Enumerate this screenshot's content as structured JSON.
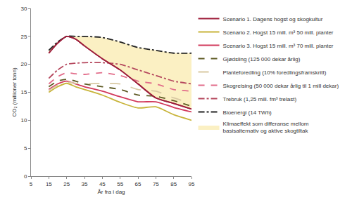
{
  "chart_data": {
    "type": "line",
    "x_label": "År fra i dag",
    "y_label": "CO₂ (millioner tonn)",
    "x": [
      15,
      20,
      25,
      30,
      35,
      45,
      55,
      65,
      75,
      85,
      95
    ],
    "xlim": [
      5,
      95
    ],
    "xticks": [
      5,
      15,
      25,
      35,
      45,
      55,
      65,
      75,
      85,
      95
    ],
    "ylim": [
      0,
      30
    ],
    "yticks": [
      0,
      5,
      10,
      15,
      20,
      25,
      30
    ],
    "grid": false,
    "legend": "right",
    "series": [
      {
        "name": "Scenario 1. Dagens hogst og skogkultur",
        "color": "#9e1f3c",
        "line_style": "solid",
        "values": [
          22,
          23.8,
          25,
          24.5,
          23.3,
          21,
          19,
          16.5,
          14,
          13,
          12
        ]
      },
      {
        "name": "Scenario 2. Hogst 15 mill. m³ 50 mill. planter",
        "color": "#c8b43a",
        "line_style": "solid",
        "values": [
          15,
          16,
          16.6,
          16,
          15.5,
          14.5,
          13.2,
          12.2,
          12.4,
          11,
          10
        ]
      },
      {
        "name": "Scenario 3. Hogst 15 mill. m³ 70 mill. planter",
        "color": "#d23a5c",
        "line_style": "solid",
        "values": [
          15.5,
          16.5,
          17,
          16.5,
          16,
          15.2,
          14.2,
          13.3,
          13.3,
          12.3,
          11.5
        ]
      },
      {
        "name": "Gjødsling (125 000 dekar årlig)",
        "color": "#5e5a24",
        "line_style": "dash",
        "values": [
          16,
          17,
          17.3,
          17,
          16.5,
          16,
          15.5,
          14.5,
          14.3,
          13.5,
          12.5
        ]
      },
      {
        "name": "Planteforedling (10% foredlingsframskritt)",
        "color": "#d9c9a3",
        "line_style": "longdash",
        "values": [
          15.3,
          16.3,
          16.8,
          16.6,
          16.5,
          16.6,
          16.5,
          15.5,
          15.2,
          14,
          13
        ]
      },
      {
        "name": "Skogreising (50 000 dekar årlig til 1 mill dekar)",
        "color": "#e26d8a",
        "line_style": "dash",
        "values": [
          16.5,
          17.8,
          18.5,
          18.3,
          18.2,
          18.5,
          18,
          17,
          16.5,
          15.5,
          15.2
        ]
      },
      {
        "name": "Trebruk (1,25 mill. fm³ trelast)",
        "color": "#b5485e",
        "line_style": "dashdot",
        "values": [
          17.5,
          19,
          20,
          20.2,
          20.3,
          20.3,
          20,
          19,
          18,
          17,
          16.5
        ]
      },
      {
        "name": "Bioenergi (14 TWh)",
        "color": "#222222",
        "line_style": "dashdot",
        "values": [
          22.5,
          24,
          25,
          25,
          25,
          24.8,
          24,
          23,
          22.5,
          22,
          22
        ]
      },
      {
        "name": "Klimaeffekt som differanse mellom basisalternativ og aktive skogtiltak",
        "color": "#fbf0c3",
        "type": "area",
        "values": [
          22.5,
          24,
          25,
          25,
          25,
          24.8,
          24,
          23,
          22.5,
          22,
          22
        ]
      }
    ]
  }
}
